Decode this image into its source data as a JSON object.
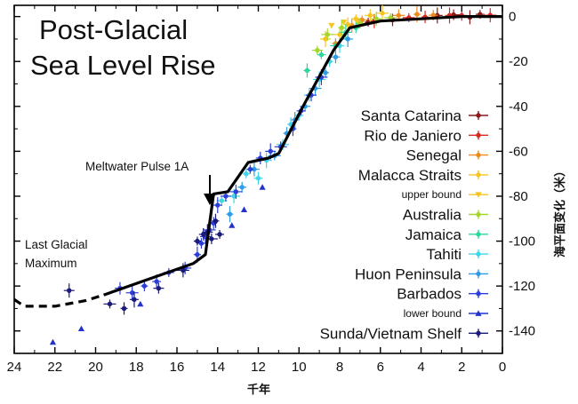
{
  "chart_data": {
    "type": "scatter",
    "title_lines": [
      "Post-Glacial",
      "Sea Level Rise"
    ],
    "xlabel": "千年",
    "ylabel": "海平面变化（米）",
    "xlim": [
      24,
      0
    ],
    "ylim": [
      -150,
      5
    ],
    "x_ticks": [
      24,
      22,
      20,
      18,
      16,
      14,
      12,
      10,
      8,
      6,
      4,
      2,
      0
    ],
    "y_ticks": [
      0,
      -20,
      -40,
      -60,
      -80,
      -100,
      -120,
      -140
    ],
    "reversed_x": true,
    "grid": false,
    "legend_placement": "right",
    "curve": {
      "solid": [
        [
          19.6,
          -124
        ],
        [
          15.2,
          -110
        ],
        [
          14.6,
          -106
        ],
        [
          14.2,
          -79
        ],
        [
          13.5,
          -78
        ],
        [
          12.5,
          -65
        ],
        [
          11.5,
          -63
        ],
        [
          11.0,
          -61
        ],
        [
          9.8,
          -40
        ],
        [
          8.3,
          -15
        ],
        [
          7.5,
          -5
        ],
        [
          6.0,
          -2
        ],
        [
          4.0,
          -1
        ],
        [
          2.0,
          0
        ],
        [
          0.0,
          0
        ]
      ],
      "dashed": [
        [
          25.0,
          -126
        ],
        [
          23.5,
          -129
        ],
        [
          22.0,
          -129
        ],
        [
          20.5,
          -126.5
        ],
        [
          19.6,
          -124
        ]
      ],
      "color": "#000000"
    },
    "annotations": [
      {
        "text": "Meltwater Pulse 1A",
        "x": 14.5,
        "y": -64
      },
      {
        "text_lines": [
          "Last Glacial",
          "Maximum"
        ],
        "x": 22.8,
        "y": -114
      }
    ],
    "series": [
      {
        "name": "Santa Catarina",
        "color": "#8b1a1a",
        "marker": "circle",
        "points": [
          [
            6.6,
            -2.5
          ],
          [
            5.4,
            -1.5
          ],
          [
            3.2,
            0.5
          ],
          [
            2.4,
            0.8
          ],
          [
            1.6,
            -0.3
          ],
          [
            1.1,
            1.0
          ]
        ]
      },
      {
        "name": "Rio de Janiero",
        "color": "#d62a1e",
        "marker": "circle",
        "points": [
          [
            6.3,
            -2.0
          ],
          [
            4.6,
            -0.5
          ],
          [
            3.8,
            -0.2
          ],
          [
            2.6,
            0.5
          ],
          [
            2.0,
            0.5
          ],
          [
            0.6,
            0.6
          ]
        ]
      },
      {
        "name": "Senegal",
        "color": "#f08a1c",
        "marker": "circle",
        "points": [
          [
            8.2,
            -12.0
          ],
          [
            7.4,
            -4.0
          ],
          [
            6.9,
            -1.5
          ],
          [
            5.1,
            0.5
          ],
          [
            4.2,
            1.0
          ],
          [
            3.4,
            0.6
          ]
        ]
      },
      {
        "name": "Malacca Straits",
        "color": "#f5c520",
        "marker": "circle",
        "points": [
          [
            8.7,
            -10.0
          ],
          [
            8.0,
            -8.0
          ],
          [
            7.6,
            -3.5
          ],
          [
            7.2,
            -1.0
          ],
          [
            6.5,
            0.5
          ],
          [
            5.9,
            1.5
          ]
        ]
      },
      {
        "name": "upper bound",
        "color": "#f5c520",
        "marker": "triangle-down",
        "points": [
          [
            8.4,
            -4.0
          ],
          [
            7.8,
            -2.5
          ],
          [
            7.1,
            -3.0
          ]
        ]
      },
      {
        "name": "Australia",
        "color": "#a6d62b",
        "marker": "circle",
        "points": [
          [
            9.1,
            -15.0
          ],
          [
            8.6,
            -8.0
          ],
          [
            7.9,
            -5.0
          ],
          [
            7.0,
            -3.0
          ],
          [
            6.2,
            -1.0
          ],
          [
            5.5,
            -0.5
          ]
        ]
      },
      {
        "name": "Jamaica",
        "color": "#2bd7a0",
        "marker": "circle",
        "points": [
          [
            9.6,
            -24.0
          ],
          [
            8.9,
            -17.0
          ],
          [
            8.2,
            -13.0
          ],
          [
            7.7,
            -7.0
          ],
          [
            7.2,
            -5.0
          ]
        ]
      },
      {
        "name": "Tahiti",
        "color": "#3fd6e8",
        "marker": "circle",
        "points": [
          [
            13.8,
            -82.0
          ],
          [
            13.2,
            -80.0
          ],
          [
            12.6,
            -70.0
          ],
          [
            12.0,
            -72.0
          ],
          [
            11.6,
            -64.0
          ],
          [
            10.8,
            -57.0
          ],
          [
            10.4,
            -48.0
          ],
          [
            10.0,
            -44.0
          ],
          [
            9.5,
            -35.0
          ],
          [
            9.0,
            -28.0
          ],
          [
            8.5,
            -20.0
          ],
          [
            8.0,
            -13.0
          ]
        ]
      },
      {
        "name": "Huon Peninsula",
        "color": "#2e9ce6",
        "marker": "circle",
        "points": [
          [
            13.4,
            -88.0
          ],
          [
            12.8,
            -76.0
          ],
          [
            12.2,
            -68.0
          ],
          [
            11.2,
            -62.0
          ],
          [
            10.6,
            -52.0
          ],
          [
            10.2,
            -46.0
          ],
          [
            9.7,
            -40.0
          ],
          [
            9.2,
            -32.0
          ],
          [
            8.7,
            -25.0
          ],
          [
            8.2,
            -18.0
          ],
          [
            7.6,
            -10.0
          ]
        ]
      },
      {
        "name": "Barbados",
        "color": "#2b3fd8",
        "marker": "circle",
        "points": [
          [
            18.8,
            -121.0
          ],
          [
            18.2,
            -123.0
          ],
          [
            17.6,
            -120.0
          ],
          [
            17.0,
            -118.0
          ],
          [
            16.4,
            -114.0
          ],
          [
            15.6,
            -112.0
          ],
          [
            15.0,
            -106.0
          ],
          [
            14.8,
            -101.0
          ],
          [
            14.6,
            -98.0
          ],
          [
            14.4,
            -95.0
          ],
          [
            14.2,
            -92.0
          ],
          [
            14.0,
            -84.0
          ],
          [
            13.6,
            -80.0
          ],
          [
            13.1,
            -78.0
          ],
          [
            12.4,
            -68.0
          ],
          [
            11.9,
            -63.0
          ],
          [
            11.4,
            -60.0
          ],
          [
            10.9,
            -58.0
          ],
          [
            10.3,
            -50.0
          ],
          [
            9.9,
            -42.0
          ],
          [
            9.4,
            -35.0
          ],
          [
            8.9,
            -27.0
          ]
        ]
      },
      {
        "name": "lower bound",
        "color": "#2233cc",
        "marker": "triangle-up",
        "points": [
          [
            22.1,
            -145.0
          ],
          [
            20.7,
            -139.0
          ],
          [
            17.8,
            -128.0
          ],
          [
            13.3,
            -93.0
          ],
          [
            12.7,
            -86.0
          ],
          [
            11.8,
            -76.0
          ]
        ]
      },
      {
        "name": "Sunda/Vietnam Shelf",
        "color": "#1a1a7a",
        "marker": "circle",
        "points": [
          [
            21.3,
            -122.0
          ],
          [
            19.3,
            -128.0
          ],
          [
            18.6,
            -130.0
          ],
          [
            18.1,
            -126.0
          ],
          [
            16.9,
            -121.0
          ],
          [
            15.7,
            -113.0
          ],
          [
            15.0,
            -100.0
          ],
          [
            14.7,
            -97.0
          ],
          [
            14.5,
            -96.0
          ],
          [
            14.3,
            -99.0
          ],
          [
            14.1,
            -91.0
          ],
          [
            13.9,
            -97.0
          ]
        ]
      }
    ]
  }
}
